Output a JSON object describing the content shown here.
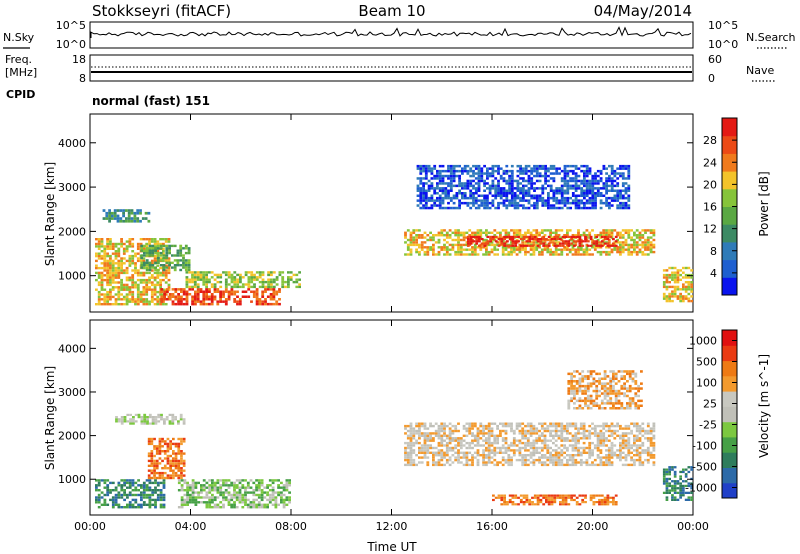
{
  "header": {
    "station": "Stokkseyri (fitACF)",
    "beam": "Beam 10",
    "date": "04/May/2014"
  },
  "strip_noise": {
    "left_label": "N.Sky",
    "right_label": "N.Search",
    "left_ticks": [
      "10^5",
      "10^0"
    ],
    "right_ticks": [
      "10^5",
      "10^0"
    ]
  },
  "strip_freq": {
    "left_label_1": "Freq.",
    "left_label_2": "[MHz]",
    "left_ticks": [
      "18",
      "8"
    ],
    "right_label": "Nave",
    "right_ticks": [
      "60",
      "0"
    ],
    "cpid_label": "CPID",
    "cpid_value": "normal (fast) 151"
  },
  "chart_data": [
    {
      "type": "heatmap",
      "name": "power",
      "xlabel": "",
      "ylabel": "Slant Range [km]",
      "x_ticks": [
        "00:00",
        "04:00",
        "08:00",
        "12:00",
        "16:00",
        "20:00",
        "00:00"
      ],
      "xlim_hours": [
        0,
        24
      ],
      "y_ticks": [
        "1000",
        "2000",
        "3000",
        "4000"
      ],
      "ylim_km": [
        180,
        4650
      ],
      "colorbar": {
        "label": "Power [dB]",
        "tick_labels": [
          "4",
          "8",
          "12",
          "16",
          "20",
          "24",
          "28"
        ],
        "colors": [
          "#0a14ee",
          "#1e5fd0",
          "#2f7bb8",
          "#3c8a64",
          "#5aa843",
          "#86c43a",
          "#f3c32a",
          "#f07a1c",
          "#ec4a16",
          "#e41a14"
        ]
      },
      "echo_regions": [
        {
          "t0": 0.2,
          "t1": 3.2,
          "r0": 330,
          "r1": 1850,
          "level": 6
        },
        {
          "t0": 0.5,
          "t1": 2.4,
          "r0": 2200,
          "r1": 2500,
          "level": 3
        },
        {
          "t0": 2.0,
          "t1": 4.0,
          "r0": 1100,
          "r1": 1700,
          "level": 4
        },
        {
          "t0": 2.8,
          "t1": 7.6,
          "r0": 330,
          "r1": 720,
          "level": 8
        },
        {
          "t0": 3.8,
          "t1": 8.4,
          "r0": 720,
          "r1": 1100,
          "level": 5
        },
        {
          "t0": 12.5,
          "t1": 22.5,
          "r0": 1450,
          "r1": 2050,
          "level": 6
        },
        {
          "t0": 15.0,
          "t1": 21.0,
          "r0": 1650,
          "r1": 1900,
          "level": 9
        },
        {
          "t0": 13.0,
          "t1": 21.5,
          "r0": 2500,
          "r1": 3500,
          "level": 1
        },
        {
          "t0": 22.8,
          "t1": 24.0,
          "r0": 400,
          "r1": 1200,
          "level": 6
        }
      ]
    },
    {
      "type": "heatmap",
      "name": "velocity",
      "xlabel": "Time UT",
      "ylabel": "Slant Range [km]",
      "x_ticks": [
        "00:00",
        "04:00",
        "08:00",
        "12:00",
        "16:00",
        "20:00",
        "00:00"
      ],
      "xlim_hours": [
        0,
        24
      ],
      "y_ticks": [
        "1000",
        "2000",
        "3000",
        "4000"
      ],
      "ylim_km": [
        180,
        4650
      ],
      "colorbar": {
        "label": "Velocity [m s^-1]",
        "tick_labels": [
          "1000",
          "500",
          "100",
          "25",
          "-25",
          "-100",
          "-500",
          "-1000"
        ],
        "colors": [
          "#2040c8",
          "#2c6aa8",
          "#2e7d5c",
          "#46a046",
          "#7cc840",
          "#c0c0b8",
          "#c8c8c0",
          "#f39a2e",
          "#ee7a14",
          "#ea3a12",
          "#e01010"
        ]
      },
      "echo_regions": [
        {
          "t0": 0.2,
          "t1": 3.0,
          "r0": 330,
          "r1": 1000,
          "level": 2
        },
        {
          "t0": 2.3,
          "t1": 3.8,
          "r0": 1000,
          "r1": 1950,
          "level": 8
        },
        {
          "t0": 1.0,
          "t1": 3.8,
          "r0": 2250,
          "r1": 2500,
          "level": 5
        },
        {
          "t0": 3.5,
          "t1": 8.0,
          "r0": 330,
          "r1": 1000,
          "level": 4
        },
        {
          "t0": 12.5,
          "t1": 22.5,
          "r0": 1300,
          "r1": 2300,
          "level": 6
        },
        {
          "t0": 19.0,
          "t1": 22.0,
          "r0": 2600,
          "r1": 3500,
          "level": 7
        },
        {
          "t0": 16.0,
          "t1": 21.0,
          "r0": 400,
          "r1": 650,
          "level": 8
        },
        {
          "t0": 22.8,
          "t1": 24.0,
          "r0": 500,
          "r1": 1300,
          "level": 2
        }
      ]
    }
  ]
}
